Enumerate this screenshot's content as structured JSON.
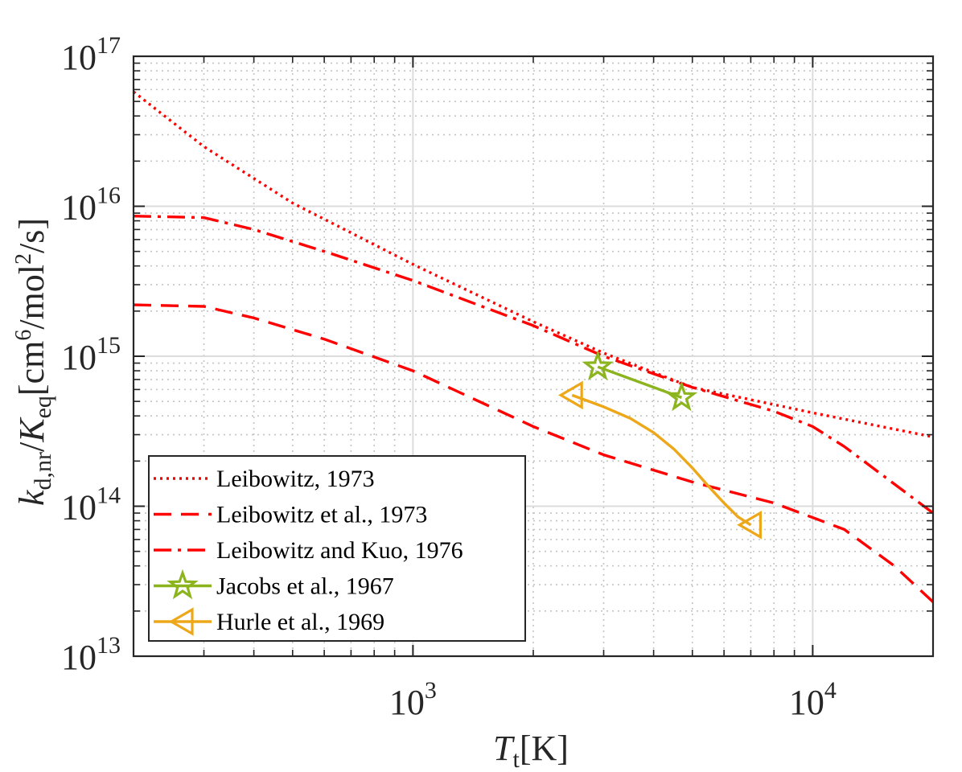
{
  "chart_data": {
    "type": "line",
    "xscale": "log",
    "yscale": "log",
    "xlim": [
      200,
      20000
    ],
    "ylim": [
      10000000000000.0,
      1e+17
    ],
    "grid": true,
    "minor_grid": true,
    "legend_position": "bottom-left",
    "x_ticks": [
      {
        "value": 1000,
        "base": "10",
        "exp": "3"
      },
      {
        "value": 10000,
        "base": "10",
        "exp": "4"
      }
    ],
    "y_ticks": [
      {
        "value": 10000000000000.0,
        "base": "10",
        "exp": "13"
      },
      {
        "value": 100000000000000.0,
        "base": "10",
        "exp": "14"
      },
      {
        "value": 1000000000000000.0,
        "base": "10",
        "exp": "15"
      },
      {
        "value": 1e+16,
        "base": "10",
        "exp": "16"
      },
      {
        "value": 1e+17,
        "base": "10",
        "exp": "17"
      }
    ],
    "xlabel": {
      "main": "T",
      "sub": "t",
      "unit": "[K]"
    },
    "ylabel": {
      "k": "k",
      "k_sub": "d,nr",
      "slash": "/",
      "K": "K",
      "K_sub": "eq",
      "unit_open": "[cm",
      "unit_exp1": "6",
      "unit_mid": "/mol",
      "unit_exp2": "2",
      "unit_close": "/s]"
    },
    "series": [
      {
        "name": "Leibowitz, 1973",
        "color": "#ff0000",
        "style": "dotted",
        "marker": "none",
        "x": [
          200,
          300,
          500,
          1000,
          2000,
          3000,
          5000,
          10000,
          20000
        ],
        "y": [
          5.8e+16,
          2.5e+16,
          1.05e+16,
          4100000000000000.0,
          1700000000000000.0,
          1050000000000000.0,
          620000000000000.0,
          420000000000000.0,
          290000000000000.0
        ]
      },
      {
        "name": "Leibowitz et al., 1973",
        "color": "#ff0000",
        "style": "dashed",
        "marker": "none",
        "x": [
          200,
          300,
          400,
          600,
          1000,
          2000,
          3000,
          5000,
          8000,
          12000,
          16000,
          20000
        ],
        "y": [
          2200000000000000.0,
          2150000000000000.0,
          1800000000000000.0,
          1300000000000000.0,
          800000000000000.0,
          340000000000000.0,
          220000000000000.0,
          145000000000000.0,
          105000000000000.0,
          70000000000000.0,
          40000000000000.0,
          23000000000000.0
        ]
      },
      {
        "name": "Leibowitz and Kuo, 1976",
        "color": "#ff0000",
        "style": "dashdot",
        "marker": "none",
        "x": [
          200,
          300,
          400,
          600,
          1000,
          2000,
          3000,
          5000,
          8000,
          10000,
          12000,
          15000,
          20000
        ],
        "y": [
          8600000000000000.0,
          8400000000000000.0,
          7000000000000000.0,
          5000000000000000.0,
          3200000000000000.0,
          1600000000000000.0,
          1000000000000000.0,
          620000000000000.0,
          430000000000000.0,
          340000000000000.0,
          250000000000000.0,
          160000000000000.0,
          90000000000000.0
        ]
      },
      {
        "name": "Jacobs et al., 1967",
        "color": "#8cb41e",
        "style": "solid",
        "marker": "star",
        "x": [
          2900,
          4700
        ],
        "y": [
          850000000000000.0,
          530000000000000.0
        ],
        "marker_x": [
          2900,
          4700
        ],
        "marker_y": [
          850000000000000.0,
          530000000000000.0
        ]
      },
      {
        "name": "Hurle et al., 1969",
        "color": "#eda81a",
        "style": "solid",
        "marker": "triangle-left",
        "x": [
          2500,
          3000,
          3500,
          4000,
          4500,
          5000,
          5500,
          6000,
          6500,
          7000
        ],
        "y": [
          550000000000000.0,
          460000000000000.0,
          385000000000000.0,
          310000000000000.0,
          240000000000000.0,
          180000000000000.0,
          135000000000000.0,
          105000000000000.0,
          85000000000000.0,
          75000000000000.0
        ],
        "marker_x": [
          2500,
          7000
        ],
        "marker_y": [
          550000000000000.0,
          75000000000000.0
        ]
      }
    ]
  }
}
